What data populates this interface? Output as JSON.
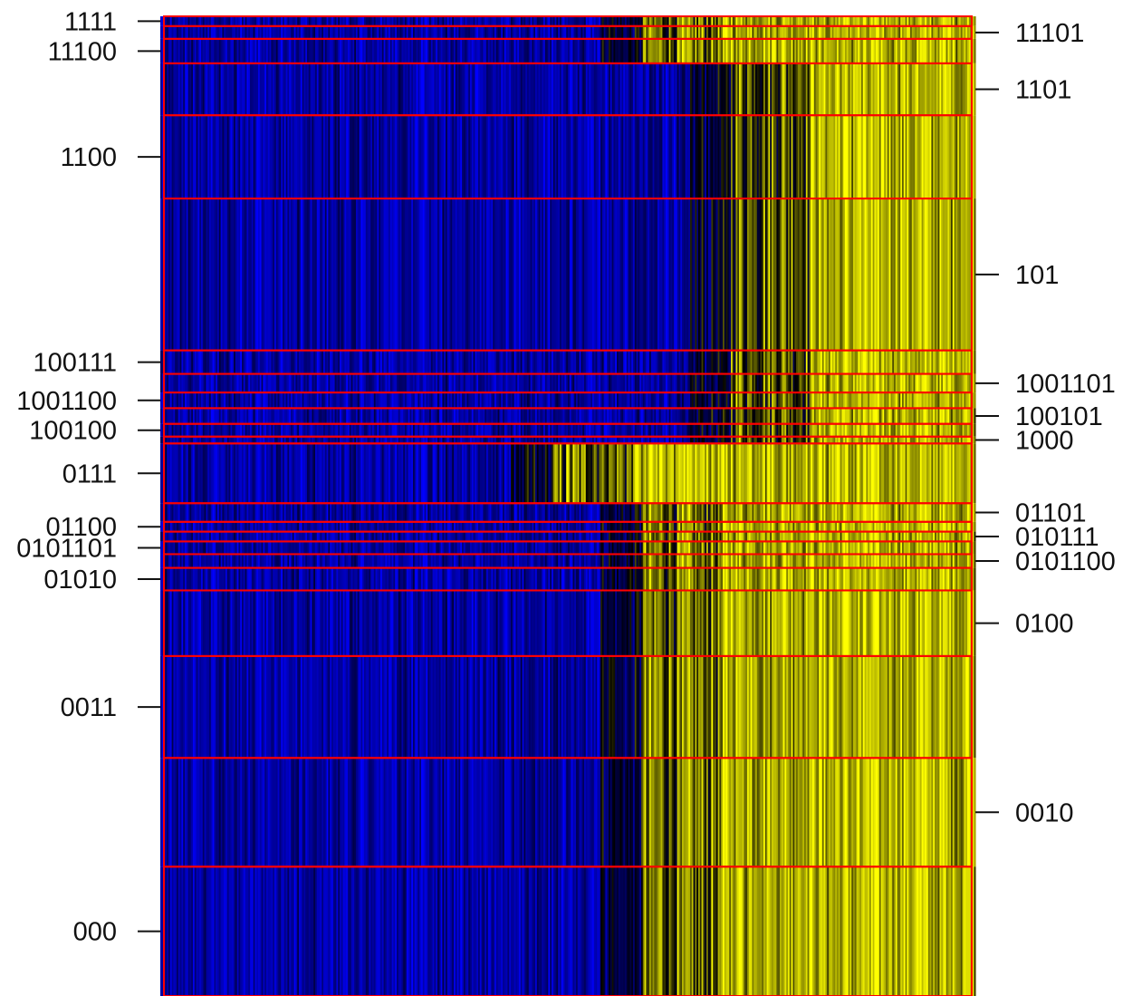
{
  "chart_data": {
    "type": "heatmap",
    "title": "",
    "xlabel": "",
    "ylabel": "",
    "grid": false,
    "legend": "none",
    "colors": {
      "low": "#0000ff",
      "mid": "#000000",
      "high": "#ffff00",
      "cluster_separator": "#ff0000",
      "background": "#ffffff",
      "text": "#111111"
    },
    "row_value_range": [
      0,
      1
    ],
    "column_count": 500,
    "column_profile": {
      "x": [
        0,
        0.59,
        0.7,
        1
      ],
      "description_free": true
    },
    "clusters": [
      {
        "label": "1111",
        "side": "left",
        "start": 0.0,
        "end": 0.01,
        "yellow_start": 0.59
      },
      {
        "label": "11101",
        "side": "right",
        "start": 0.01,
        "end": 0.023,
        "yellow_start": 0.59
      },
      {
        "label": "11100",
        "side": "left",
        "start": 0.023,
        "end": 0.048,
        "yellow_start": 0.59
      },
      {
        "label": "1101",
        "side": "right",
        "start": 0.048,
        "end": 0.101,
        "yellow_start": 0.7
      },
      {
        "label": "1100",
        "side": "left",
        "start": 0.101,
        "end": 0.186,
        "yellow_start": 0.7
      },
      {
        "label": "101",
        "side": "right",
        "start": 0.186,
        "end": 0.341,
        "yellow_start": 0.7
      },
      {
        "label": "100111",
        "side": "left",
        "start": 0.341,
        "end": 0.365,
        "yellow_start": 0.7
      },
      {
        "label": "1001101",
        "side": "right",
        "start": 0.365,
        "end": 0.384,
        "yellow_start": 0.7
      },
      {
        "label": "1001100",
        "side": "left",
        "start": 0.384,
        "end": 0.4,
        "yellow_start": 0.7
      },
      {
        "label": "100101",
        "side": "right",
        "start": 0.4,
        "end": 0.416,
        "yellow_start": 0.7
      },
      {
        "label": "100100",
        "side": "left",
        "start": 0.416,
        "end": 0.429,
        "yellow_start": 0.7
      },
      {
        "label": "1000",
        "side": "right",
        "start": 0.429,
        "end": 0.436,
        "yellow_start": 0.7
      },
      {
        "label": "0111",
        "side": "left",
        "start": 0.436,
        "end": 0.497,
        "yellow_start": 0.48
      },
      {
        "label": "01101",
        "side": "right",
        "start": 0.497,
        "end": 0.516,
        "yellow_start": 0.59
      },
      {
        "label": "01100",
        "side": "left",
        "start": 0.516,
        "end": 0.526,
        "yellow_start": 0.59
      },
      {
        "label": "010111",
        "side": "right",
        "start": 0.526,
        "end": 0.536,
        "yellow_start": 0.59
      },
      {
        "label": "0101101",
        "side": "left",
        "start": 0.536,
        "end": 0.549,
        "yellow_start": 0.59
      },
      {
        "label": "0101100",
        "side": "right",
        "start": 0.549,
        "end": 0.563,
        "yellow_start": 0.59
      },
      {
        "label": "01010",
        "side": "left",
        "start": 0.563,
        "end": 0.586,
        "yellow_start": 0.59
      },
      {
        "label": "0100",
        "side": "right",
        "start": 0.586,
        "end": 0.653,
        "yellow_start": 0.59
      },
      {
        "label": "0011",
        "side": "left",
        "start": 0.653,
        "end": 0.757,
        "yellow_start": 0.59
      },
      {
        "label": "0010",
        "side": "right",
        "start": 0.757,
        "end": 0.868,
        "yellow_start": 0.59
      },
      {
        "label": "000",
        "side": "left",
        "start": 0.868,
        "end": 1.0,
        "yellow_start": 0.59
      }
    ]
  }
}
